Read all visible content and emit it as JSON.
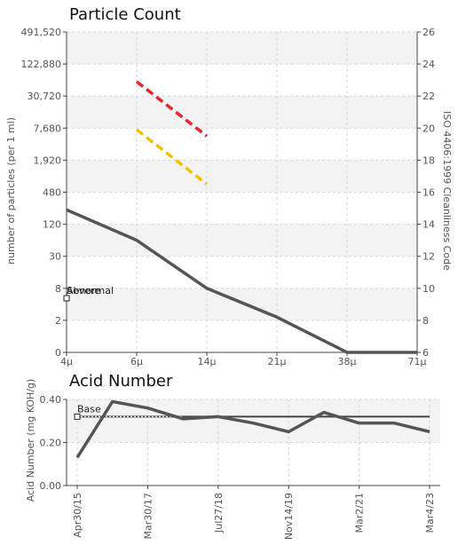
{
  "colors": {
    "series": "#555555",
    "severe": "#e8242c",
    "abnormal": "#f2c200",
    "grid": "#d6d6d6",
    "band": "#f3f3f3",
    "axis": "#444444"
  },
  "chart_data": [
    {
      "type": "line",
      "title": "Particle Count",
      "ylabel": "number of particles (per 1 ml)",
      "y2label": "ISO 4406:1999 Cleanliness Code",
      "x_tick_labels": [
        "4μ",
        "6μ",
        "14μ",
        "21μ",
        "38μ",
        "71μ"
      ],
      "y_tick_labels": [
        "0",
        "2",
        "8",
        "30",
        "120",
        "480",
        "1,920",
        "7,680",
        "30,720",
        "122,880",
        "491,520"
      ],
      "y2_tick_labels": [
        "6",
        "8",
        "10",
        "12",
        "14",
        "16",
        "18",
        "20",
        "22",
        "24",
        "26"
      ],
      "ylim_code": [
        6,
        26
      ],
      "series": [
        {
          "x": [
            "4μ",
            "6μ",
            "14μ",
            "21μ",
            "38μ",
            "71μ"
          ],
          "values": [
            14.9,
            13.0,
            10.0,
            8.2,
            6.0,
            6.0
          ]
        }
      ],
      "limit_lines": [
        {
          "label": "Severe",
          "x": [
            "6μ",
            "14μ"
          ],
          "values": [
            22.9,
            19.5
          ]
        },
        {
          "label": "Abnormal",
          "x": [
            "6μ",
            "14μ"
          ],
          "values": [
            19.9,
            16.5
          ]
        }
      ],
      "grid": true
    },
    {
      "type": "line",
      "title": "Acid Number",
      "ylabel": "Acid Number (mg KOH/g)",
      "x_tick_labels": [
        "Apr30/15",
        "Mar30/17",
        "Jul27/18",
        "Nov14/19",
        "Mar2/21",
        "Mar4/23"
      ],
      "y_tick_labels": [
        "0.00",
        "0.20",
        "0.40"
      ],
      "ylim": [
        0,
        0.4
      ],
      "series": [
        {
          "x": [
            0,
            0.5,
            1,
            1.5,
            2,
            2.5,
            3,
            3.5,
            4,
            4.5,
            5
          ],
          "values": [
            0.13,
            0.39,
            0.36,
            0.31,
            0.32,
            0.29,
            0.25,
            0.34,
            0.29,
            0.29,
            0.25
          ]
        }
      ],
      "baseline": {
        "label": "Base",
        "value": 0.32
      },
      "grid": true
    }
  ]
}
